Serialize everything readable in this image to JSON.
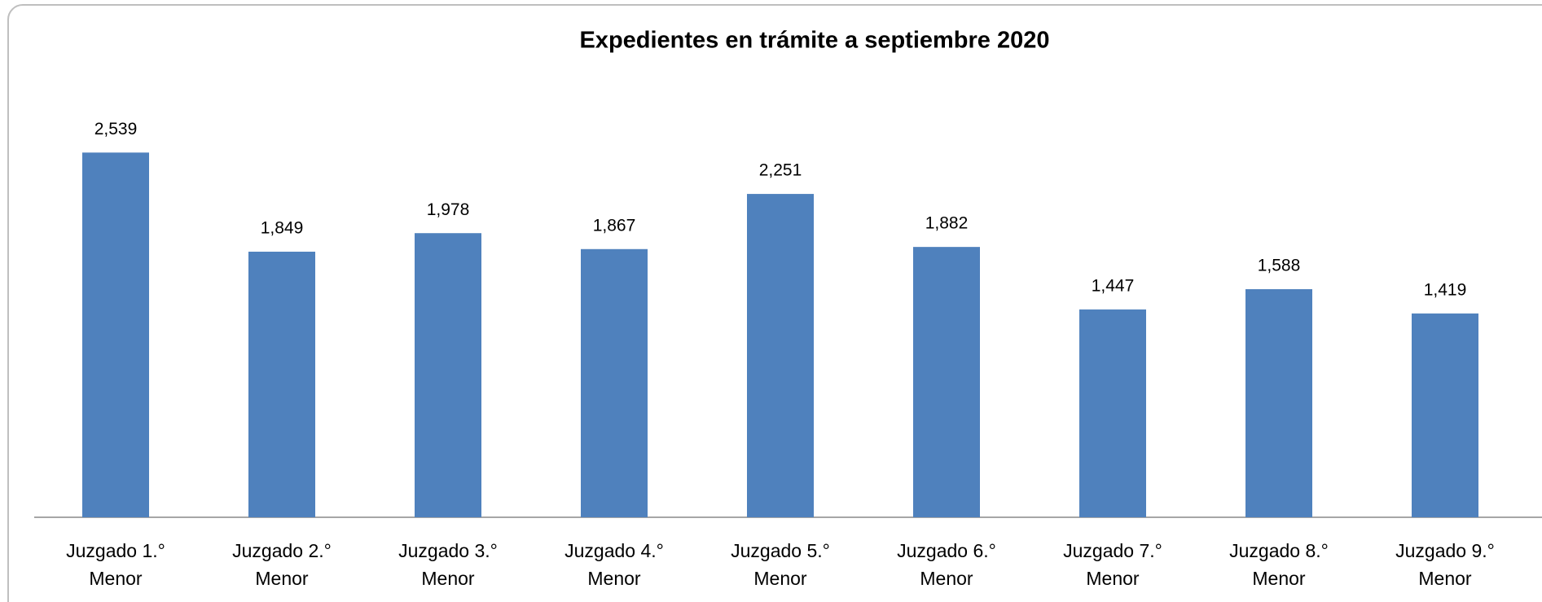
{
  "chart_data": {
    "type": "bar",
    "title": "Expedientes en trámite a septiembre 2020",
    "categories": [
      "Juzgado 1.° Menor",
      "Juzgado 2.° Menor",
      "Juzgado 3.° Menor",
      "Juzgado 4.° Menor",
      "Juzgado 5.° Menor",
      "Juzgado 6.° Menor",
      "Juzgado 7.° Menor",
      "Juzgado 8.° Menor",
      "Juzgado 9.° Menor"
    ],
    "values": [
      2539,
      1849,
      1978,
      1867,
      2251,
      1882,
      1447,
      1588,
      1419
    ],
    "value_labels": [
      "2,539",
      "1,849",
      "1,978",
      "1,867",
      "2,251",
      "1,882",
      "1,447",
      "1,588",
      "1,419"
    ],
    "color": "#4f81bd",
    "ylim": [
      0,
      3000
    ]
  }
}
